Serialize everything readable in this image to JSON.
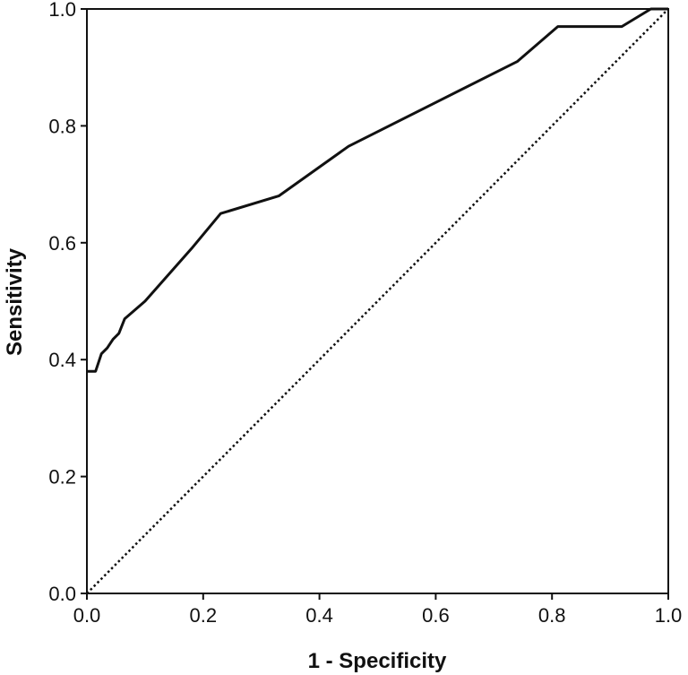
{
  "chart_data": {
    "type": "line",
    "title": "",
    "xlabel": "1 - Specificity",
    "ylabel": "Sensitivity",
    "xlim": [
      0,
      1
    ],
    "ylim": [
      0,
      1
    ],
    "grid": false,
    "x_ticks": [
      "0.0",
      "0.2",
      "0.4",
      "0.6",
      "0.8",
      "1.0"
    ],
    "y_ticks": [
      "0.0",
      "0.2",
      "0.4",
      "0.6",
      "0.8",
      "1.0"
    ],
    "series": [
      {
        "style": "solid",
        "color": "#111111",
        "points": [
          [
            0.0,
            0.38
          ],
          [
            0.015,
            0.38
          ],
          [
            0.025,
            0.41
          ],
          [
            0.035,
            0.42
          ],
          [
            0.045,
            0.435
          ],
          [
            0.055,
            0.445
          ],
          [
            0.065,
            0.47
          ],
          [
            0.1,
            0.5
          ],
          [
            0.18,
            0.59
          ],
          [
            0.23,
            0.65
          ],
          [
            0.33,
            0.68
          ],
          [
            0.45,
            0.765
          ],
          [
            0.6,
            0.84
          ],
          [
            0.74,
            0.91
          ],
          [
            0.81,
            0.97
          ],
          [
            0.92,
            0.97
          ],
          [
            0.97,
            1.0
          ],
          [
            1.0,
            1.0
          ]
        ]
      },
      {
        "style": "dotted",
        "color": "#111111",
        "points": [
          [
            0.0,
            0.0
          ],
          [
            1.0,
            1.0
          ]
        ]
      }
    ]
  }
}
